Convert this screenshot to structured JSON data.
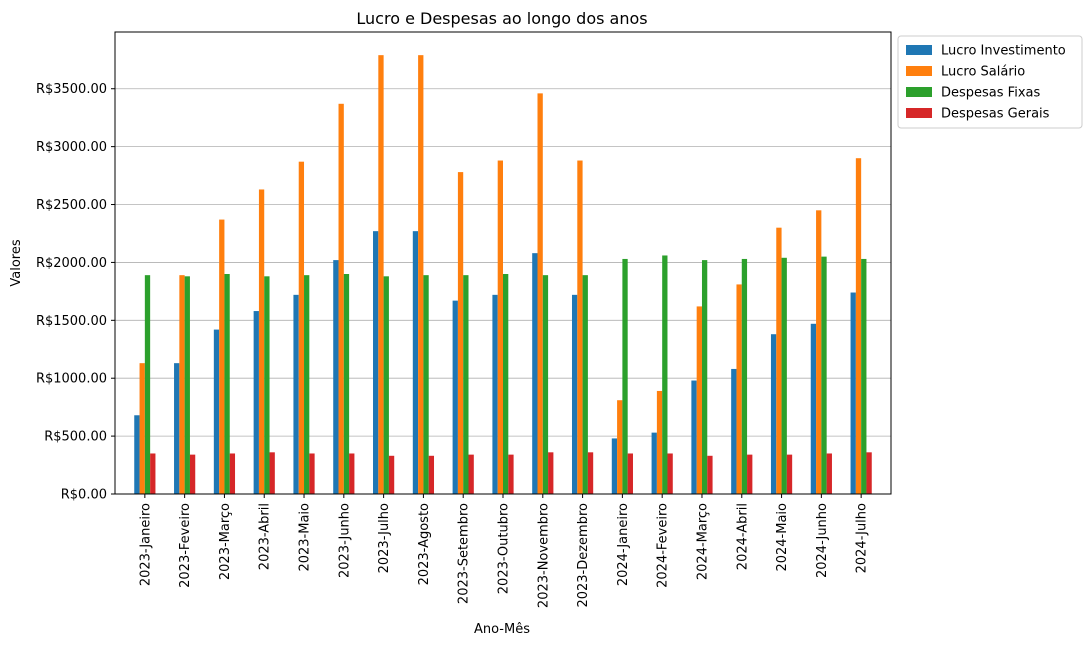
{
  "chart_data": {
    "type": "bar",
    "title": "Lucro e Despesas ao longo dos anos",
    "xlabel": "Ano-Mês",
    "ylabel": "Valores",
    "ylim": [
      0,
      3990
    ],
    "yticks": [
      0,
      500,
      1000,
      1500,
      2000,
      2500,
      3000,
      3500
    ],
    "ytick_labels": [
      "R$0.00",
      "R$500.00",
      "R$1000.00",
      "R$1500.00",
      "R$2000.00",
      "R$2500.00",
      "R$3000.00",
      "R$3500.00"
    ],
    "grid": "horizontal",
    "legend_position": "outside-top-right",
    "categories": [
      "2023-Janeiro",
      "2023-Feveiro",
      "2023-Março",
      "2023-Abril",
      "2023-Maio",
      "2023-Junho",
      "2023-Julho",
      "2023-Agosto",
      "2023-Setembro",
      "2023-Outubro",
      "2023-Novembro",
      "2023-Dezembro",
      "2024-Janeiro",
      "2024-Feveiro",
      "2024-Março",
      "2024-Abril",
      "2024-Maio",
      "2024-Junho",
      "2024-Julho"
    ],
    "series": [
      {
        "name": "Lucro Investimento",
        "color": "#1f77b4",
        "values": [
          680,
          1130,
          1420,
          1580,
          1720,
          2020,
          2270,
          2270,
          1670,
          1720,
          2080,
          1720,
          480,
          530,
          980,
          1080,
          1380,
          1470,
          1740
        ]
      },
      {
        "name": "Lucro Salário",
        "color": "#ff7f0e",
        "values": [
          1130,
          1890,
          2370,
          2630,
          2870,
          3370,
          3790,
          3790,
          2780,
          2880,
          3460,
          2880,
          810,
          890,
          1620,
          1810,
          2300,
          2450,
          2900
        ]
      },
      {
        "name": "Despesas Fixas",
        "color": "#2ca02c",
        "values": [
          1890,
          1880,
          1900,
          1880,
          1890,
          1900,
          1880,
          1890,
          1890,
          1900,
          1890,
          1890,
          2030,
          2060,
          2020,
          2030,
          2040,
          2050,
          2030
        ]
      },
      {
        "name": "Despesas Gerais",
        "color": "#d62728",
        "values": [
          350,
          340,
          350,
          360,
          350,
          350,
          330,
          330,
          340,
          340,
          360,
          360,
          350,
          350,
          330,
          340,
          340,
          350,
          360
        ]
      }
    ]
  }
}
